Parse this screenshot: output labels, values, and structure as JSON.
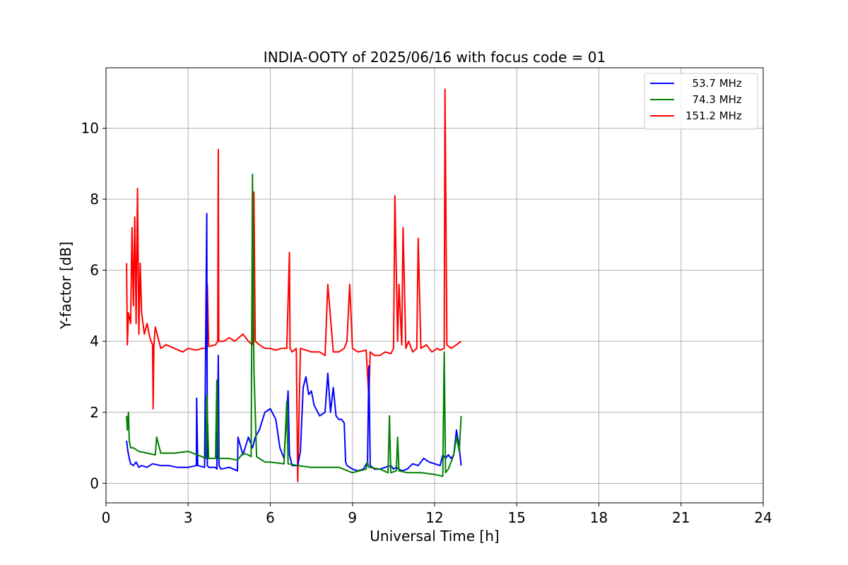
{
  "chart_data": {
    "type": "line",
    "title": "INDIA-OOTY of 2025/06/16 with focus code = 01",
    "xlabel": "Universal Time [h]",
    "ylabel": "Y-factor [dB]",
    "xlim": [
      0,
      24
    ],
    "ylim": [
      -0.55,
      11.7
    ],
    "xticks": [
      0,
      3,
      6,
      9,
      12,
      15,
      18,
      21,
      24
    ],
    "xtick_labels": [
      "0",
      "3",
      "6",
      "9",
      "12",
      "15",
      "18",
      "21",
      "24"
    ],
    "yticks": [
      0,
      2,
      4,
      6,
      8,
      10
    ],
    "ytick_labels": [
      "0",
      "2",
      "4",
      "6",
      "8",
      "10"
    ],
    "grid": true,
    "legend_position": "top-right",
    "series": [
      {
        "name": "  53.7 MHz",
        "color": "#0000ff",
        "x": [
          0.75,
          0.8,
          0.85,
          0.9,
          1.0,
          1.1,
          1.2,
          1.3,
          1.5,
          1.7,
          2.0,
          2.3,
          2.6,
          3.0,
          3.3,
          3.31,
          3.35,
          3.6,
          3.68,
          3.7,
          3.75,
          4.0,
          4.05,
          4.1,
          4.13,
          4.2,
          4.5,
          4.8,
          4.82,
          5.0,
          5.2,
          5.35,
          5.45,
          5.6,
          5.8,
          6.0,
          6.2,
          6.35,
          6.5,
          6.65,
          6.7,
          6.8,
          7.0,
          7.1,
          7.2,
          7.3,
          7.4,
          7.5,
          7.6,
          7.8,
          8.0,
          8.1,
          8.2,
          8.3,
          8.4,
          8.5,
          8.6,
          8.7,
          8.75,
          8.8,
          9.0,
          9.2,
          9.4,
          9.55,
          9.6,
          9.65,
          9.8,
          10.0,
          10.2,
          10.4,
          10.5,
          10.6,
          10.8,
          11.0,
          11.2,
          11.4,
          11.6,
          11.8,
          12.0,
          12.2,
          12.3,
          12.4,
          12.5,
          12.6,
          12.7,
          12.8,
          12.9,
          12.97
        ],
        "y": [
          1.2,
          0.9,
          0.7,
          0.55,
          0.5,
          0.6,
          0.45,
          0.5,
          0.45,
          0.55,
          0.5,
          0.5,
          0.45,
          0.45,
          0.5,
          2.4,
          0.5,
          0.45,
          7.6,
          0.5,
          0.45,
          0.45,
          0.4,
          3.6,
          0.5,
          0.4,
          0.45,
          0.35,
          1.3,
          0.8,
          1.3,
          1.0,
          1.3,
          1.5,
          2.0,
          2.1,
          1.8,
          1.0,
          0.7,
          2.6,
          0.8,
          0.5,
          0.5,
          0.9,
          2.7,
          3.0,
          2.5,
          2.6,
          2.2,
          1.9,
          2.0,
          3.1,
          2.0,
          2.7,
          1.9,
          1.8,
          1.8,
          1.7,
          0.6,
          0.5,
          0.4,
          0.35,
          0.4,
          0.6,
          3.3,
          0.5,
          0.4,
          0.4,
          0.45,
          0.5,
          0.4,
          0.45,
          0.35,
          0.4,
          0.55,
          0.5,
          0.7,
          0.6,
          0.55,
          0.5,
          0.8,
          0.7,
          0.8,
          0.7,
          0.8,
          1.5,
          1.0,
          0.5
        ]
      },
      {
        "name": "  74.3 MHz",
        "color": "#008000",
        "x": [
          0.75,
          0.78,
          0.82,
          0.85,
          0.9,
          1.0,
          1.2,
          1.5,
          1.8,
          1.85,
          2.0,
          2.5,
          3.0,
          3.5,
          3.65,
          3.68,
          3.75,
          4.0,
          4.05,
          4.1,
          4.5,
          4.8,
          5.0,
          5.2,
          5.3,
          5.35,
          5.4,
          5.5,
          5.8,
          6.0,
          6.5,
          6.6,
          6.65,
          7.0,
          7.5,
          8.0,
          8.5,
          9.0,
          9.5,
          9.55,
          9.6,
          10.0,
          10.3,
          10.35,
          10.4,
          10.6,
          10.65,
          10.7,
          11.0,
          11.5,
          12.0,
          12.3,
          12.35,
          12.4,
          12.5,
          12.6,
          12.7,
          12.8,
          12.9,
          12.97
        ],
        "y": [
          1.9,
          1.5,
          2.0,
          1.2,
          1.0,
          1.0,
          0.9,
          0.85,
          0.8,
          1.3,
          0.85,
          0.85,
          0.9,
          0.75,
          0.7,
          2.5,
          0.7,
          0.7,
          2.9,
          0.7,
          0.7,
          0.65,
          0.85,
          0.8,
          0.75,
          8.7,
          3.2,
          0.75,
          0.6,
          0.6,
          0.55,
          2.3,
          0.55,
          0.5,
          0.45,
          0.45,
          0.45,
          0.3,
          0.4,
          0.6,
          0.45,
          0.4,
          0.3,
          1.9,
          0.3,
          0.35,
          1.3,
          0.35,
          0.3,
          0.3,
          0.25,
          0.2,
          3.7,
          0.3,
          0.4,
          0.6,
          0.8,
          1.3,
          0.9,
          1.9
        ]
      },
      {
        "name": "151.2 MHz",
        "color": "#ff0000",
        "x": [
          0.75,
          0.78,
          0.82,
          0.9,
          0.95,
          1.0,
          1.05,
          1.1,
          1.15,
          1.2,
          1.25,
          1.3,
          1.4,
          1.5,
          1.6,
          1.7,
          1.72,
          1.75,
          1.8,
          2.0,
          2.2,
          2.5,
          2.8,
          3.0,
          3.3,
          3.5,
          3.68,
          3.7,
          3.75,
          4.0,
          4.08,
          4.1,
          4.12,
          4.3,
          4.5,
          4.7,
          5.0,
          5.2,
          5.35,
          5.4,
          5.45,
          5.6,
          5.8,
          6.0,
          6.2,
          6.4,
          6.6,
          6.7,
          6.72,
          6.8,
          6.95,
          7.0,
          7.1,
          7.3,
          7.5,
          7.8,
          8.0,
          8.1,
          8.3,
          8.5,
          8.7,
          8.8,
          8.9,
          9.0,
          9.2,
          9.5,
          9.6,
          9.65,
          9.8,
          10.0,
          10.2,
          10.4,
          10.5,
          10.55,
          10.65,
          10.7,
          10.8,
          10.85,
          10.95,
          11.05,
          11.2,
          11.35,
          11.4,
          11.5,
          11.7,
          11.9,
          12.1,
          12.2,
          12.35,
          12.38,
          12.45,
          12.6,
          12.8,
          12.97
        ],
        "y": [
          6.2,
          3.9,
          4.8,
          4.5,
          7.2,
          5.0,
          7.5,
          4.5,
          8.3,
          4.2,
          6.2,
          4.8,
          4.2,
          4.5,
          4.1,
          3.9,
          2.1,
          3.9,
          4.4,
          3.8,
          3.9,
          3.8,
          3.7,
          3.8,
          3.75,
          3.8,
          3.8,
          5.6,
          3.85,
          3.9,
          4.0,
          9.4,
          4.0,
          4.0,
          4.1,
          4.0,
          4.2,
          4.0,
          3.9,
          8.2,
          4.0,
          3.9,
          3.8,
          3.8,
          3.75,
          3.8,
          3.8,
          6.5,
          3.8,
          3.7,
          3.8,
          0.05,
          3.8,
          3.75,
          3.7,
          3.7,
          3.6,
          5.6,
          3.7,
          3.7,
          3.8,
          4.0,
          5.6,
          3.8,
          3.7,
          3.75,
          2.4,
          3.7,
          3.6,
          3.6,
          3.7,
          3.65,
          3.8,
          8.1,
          4.0,
          5.6,
          3.9,
          7.2,
          3.8,
          4.0,
          3.7,
          3.8,
          6.9,
          3.8,
          3.9,
          3.7,
          3.8,
          3.75,
          3.8,
          11.1,
          3.9,
          3.8,
          3.9,
          4.0
        ]
      }
    ]
  }
}
